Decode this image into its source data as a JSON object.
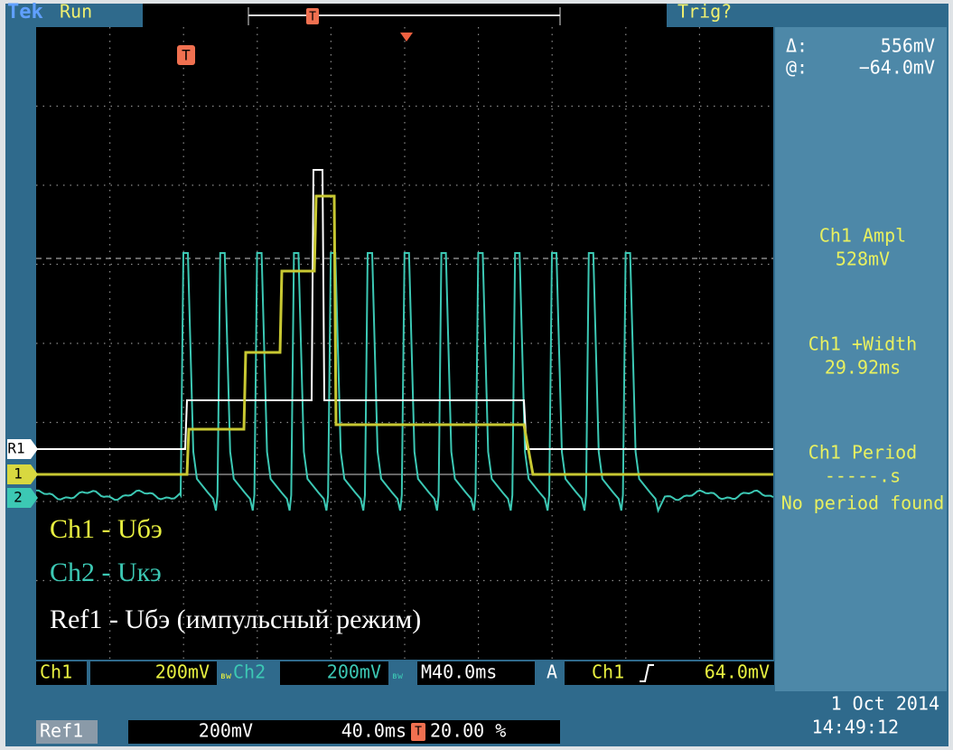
{
  "header": {
    "brand": "Tek",
    "status": "Run",
    "trigger": "Trig?"
  },
  "cursor": {
    "delta_label": "Δ:",
    "delta": "556mV",
    "at_label": "@:",
    "at": "−64.0mV"
  },
  "measurements": [
    {
      "label": "Ch1 Ampl",
      "value": "528mV"
    },
    {
      "label": "Ch1 +Width",
      "value": "29.92ms"
    },
    {
      "label": "Ch1 Period",
      "value": "-----.s",
      "note": "No period found"
    }
  ],
  "markers": {
    "trigger": "T",
    "ref": "R1",
    "ch1": "1",
    "ch2": "2"
  },
  "annotations": [
    "Ch1 - Uбэ",
    "Ch2 - Uкэ",
    "Ref1 - Uбэ (импульсный режим)"
  ],
  "status_bar": {
    "ch1_label": "Ch1",
    "ch1_scale": "200mV",
    "ch2_label": "Ch2",
    "ch2_scale": "200mV",
    "timebase": "M40.0ms",
    "trigger_mode": "A",
    "trigger_source": "Ch1",
    "trigger_level": "64.0mV",
    "ref_label": "Ref1",
    "ref_scale": "200mV",
    "ref_timebase": "40.0ms",
    "trigger_position": "20.00 %",
    "date": "1 Oct  2014",
    "time": "14:49:12"
  }
}
